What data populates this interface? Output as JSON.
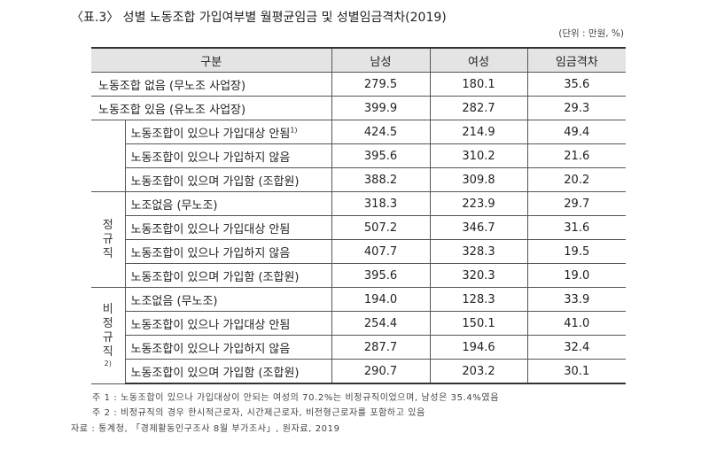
{
  "title": "〈표.3〉 성별 노동조합 가입여부별 월평균임금 및 성별임금격차(2019)",
  "unit": "(단위 : 만원, %)",
  "header": {
    "category": "구분",
    "male": "남성",
    "female": "여성",
    "gap": "임금격차"
  },
  "rows": [
    {
      "label": "노동조합 없음 (무노조 사업장)",
      "male": "279.5",
      "female": "180.1",
      "gap": "35.6"
    },
    {
      "label": "노동조합 있음 (유노조 사업장)",
      "male": "399.9",
      "female": "282.7",
      "gap": "29.3"
    },
    {
      "label": "노동조합이 있으나 가입대상 안됨",
      "sup": "1)",
      "male": "424.5",
      "female": "214.9",
      "gap": "49.4"
    },
    {
      "label": "노동조합이 있으나 가입하지 않음",
      "male": "395.6",
      "female": "310.2",
      "gap": "21.6"
    },
    {
      "label": "노동조합이 있으며 가입함 (조합원)",
      "male": "388.2",
      "female": "309.8",
      "gap": "20.2"
    },
    {
      "label": "노조없음 (무노조)",
      "male": "318.3",
      "female": "223.9",
      "gap": "29.7"
    },
    {
      "label": "노동조합이 있으나 가입대상 안됨",
      "male": "507.2",
      "female": "346.7",
      "gap": "31.6"
    },
    {
      "label": "노동조합이 있으나 가입하지 않음",
      "male": "407.7",
      "female": "328.3",
      "gap": "19.5"
    },
    {
      "label": "노동조합이 있으며 가입함 (조합원)",
      "male": "395.6",
      "female": "320.3",
      "gap": "19.0"
    },
    {
      "label": "노조없음 (무노조)",
      "male": "194.0",
      "female": "128.3",
      "gap": "33.9"
    },
    {
      "label": "노동조합이 있으나 가입대상 안됨",
      "male": "254.4",
      "female": "150.1",
      "gap": "41.0"
    },
    {
      "label": "노동조합이 있으나 가입하지 않음",
      "male": "287.7",
      "female": "194.6",
      "gap": "32.4"
    },
    {
      "label": "노동조합이 있으며 가입함 (조합원)",
      "male": "290.7",
      "female": "203.2",
      "gap": "30.1"
    }
  ],
  "groups": {
    "regular": [
      "정",
      "규",
      "직"
    ],
    "nonregular": [
      "비",
      "정",
      "규",
      "직",
      "2)"
    ]
  },
  "notes": [
    "주 1 : 노동조합이 있으나 가입대상이 안되는 여성의 70.2%는 비정규직이었으며, 남성은 35.4%였음",
    "주 2 : 비정규직의 경우 한시적근로자, 시간제근로자, 비전형근로자를 포함하고 있음"
  ],
  "source": "자료 : 통계청, 「경제활동인구조사 8월 부가조사」, 원자료, 2019"
}
